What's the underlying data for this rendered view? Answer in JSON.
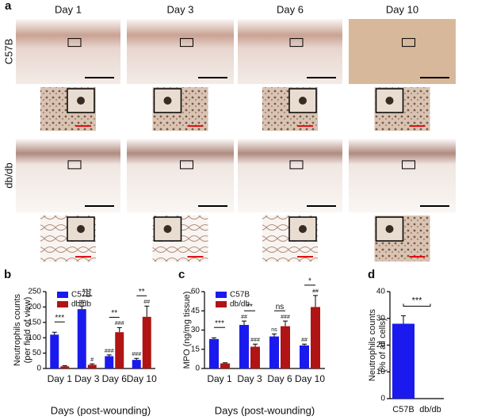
{
  "panel_a": {
    "label": "a",
    "columns": [
      "Day 1",
      "Day 3",
      "Day 6",
      "Day 10"
    ],
    "rows": [
      "C57B",
      "db/db"
    ]
  },
  "chart_data": [
    {
      "type": "bar",
      "panel_label": "b",
      "ylabel": [
        "Neutrophils counts",
        "(per field of view)"
      ],
      "xlabel": "Days (post-wounding)",
      "categories": [
        "Day 1",
        "Day 3",
        "Day 6",
        "Day 10"
      ],
      "series": [
        {
          "name": "C57B",
          "color": "#1a1aee",
          "values": [
            110,
            193,
            40,
            28
          ],
          "errors": [
            8,
            10,
            4,
            5
          ],
          "marks": [
            null,
            "##",
            "###",
            "###"
          ]
        },
        {
          "name": "db/db",
          "color": "#b01414",
          "values": [
            7,
            12,
            118,
            168
          ],
          "errors": [
            2,
            3,
            15,
            35
          ],
          "marks": [
            null,
            "#",
            "###",
            "##"
          ]
        }
      ],
      "significance": [
        "***",
        "***",
        "**",
        "**"
      ],
      "ylim": [
        0,
        250
      ],
      "yticks": [
        0,
        50,
        100,
        150,
        200,
        250
      ],
      "legend": "upper left"
    },
    {
      "type": "bar",
      "panel_label": "c",
      "ylabel": [
        "MPO (ng/mg tissue)"
      ],
      "xlabel": "Days (post-wounding)",
      "categories": [
        "Day 1",
        "Day 3",
        "Day 6",
        "Day 10"
      ],
      "series": [
        {
          "name": "C57B",
          "color": "#1a1aee",
          "values": [
            23,
            34,
            25,
            18
          ],
          "errors": [
            1,
            3,
            2,
            1
          ],
          "marks": [
            null,
            "##",
            "ns",
            "##"
          ]
        },
        {
          "name": "db/db",
          "color": "#b01414",
          "values": [
            4,
            17,
            33,
            48
          ],
          "errors": [
            0.5,
            2,
            4,
            9
          ],
          "marks": [
            null,
            "###",
            "###",
            "##"
          ]
        }
      ],
      "significance": [
        "***",
        "**",
        "ns",
        "*"
      ],
      "ylim": [
        0,
        60
      ],
      "yticks": [
        0,
        15,
        30,
        45,
        60
      ],
      "legend": "upper left"
    },
    {
      "type": "bar",
      "panel_label": "d",
      "ylabel": [
        "Neutrophils counts",
        "(% of all cells)"
      ],
      "categories": [
        "C57B",
        "db/db"
      ],
      "series": [
        {
          "color": "#1a1aee",
          "values": [
            28,
            0
          ],
          "errors": [
            3,
            0
          ]
        }
      ],
      "significance": "***",
      "ylim": [
        0,
        40
      ],
      "yticks": [
        0,
        10,
        20,
        30,
        40
      ]
    }
  ]
}
